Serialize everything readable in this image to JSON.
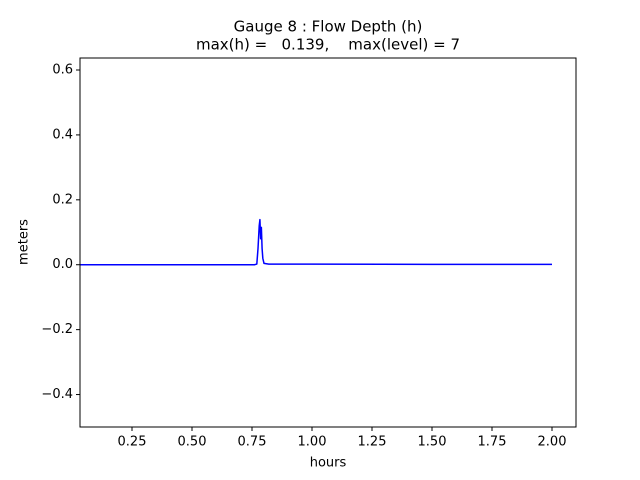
{
  "chart_data": {
    "type": "line",
    "title": "Gauge 8 : Flow Depth (h)",
    "subtitle": "max(h) =   0.139,    max(level) = 7",
    "x_label": "hours",
    "y_label": "meters",
    "x": [
      0.0333,
      0.5,
      0.76,
      0.77,
      0.775,
      0.78,
      0.783,
      0.786,
      0.789,
      0.792,
      0.795,
      0.8,
      0.82,
      1.0,
      1.5,
      2.0
    ],
    "series": [
      {
        "color": "#0000ff",
        "values": [
          0,
          0,
          0,
          0.002,
          0.05,
          0.12,
          0.139,
          0.08,
          0.115,
          0.05,
          0.02,
          0.004,
          0.002,
          0.002,
          0.001,
          0.001
        ]
      }
    ],
    "xlim": [
      0.0333,
      2.1
    ],
    "xticks": [
      0.25,
      {
        "value": 0.5,
        "label": "0.50"
      },
      0.75,
      {
        "value": 1,
        "label": "1.00"
      },
      1.25,
      {
        "value": 1.5,
        "label": "1.50"
      },
      1.75,
      {
        "value": 2,
        "label": "2.00"
      }
    ],
    "ylim": [
      -0.5,
      0.637
    ],
    "yticks": [
      {
        "value": -0.4,
        "label": "−0.4"
      },
      {
        "value": -0.2,
        "label": "−0.2"
      },
      {
        "value": 0,
        "label": "0.0"
      },
      0.2,
      0.4,
      0.6
    ],
    "grid": false
  }
}
